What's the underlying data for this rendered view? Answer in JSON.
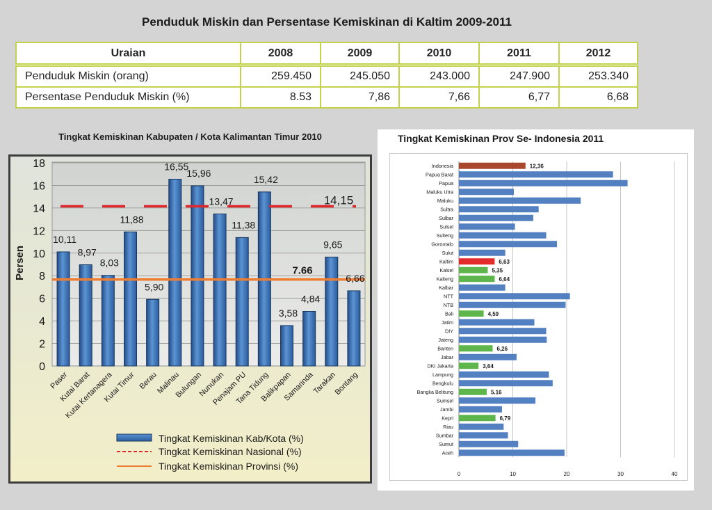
{
  "title": "Penduduk Miskin dan Persentase Kemiskinan di Kaltim 2009-2011",
  "table": {
    "headers": [
      "Uraian",
      "2008",
      "2009",
      "2010",
      "2011",
      "2012"
    ],
    "rows": [
      {
        "label": "Penduduk Miskin (orang)",
        "values": [
          "259.450",
          "245.050",
          "243.000",
          "247.900",
          "253.340"
        ]
      },
      {
        "label": "Persentase Penduduk Miskin (%)",
        "values": [
          "8.53",
          "7,86",
          "7,66",
          "6,77",
          "6,68"
        ]
      }
    ]
  },
  "colors": {
    "page_background": "#d4d4d4",
    "table_border": "#c3d24c"
  },
  "chart_data": [
    {
      "type": "bar",
      "title": "Tingkat Kemiskinan Kabupaten / Kota Kalimantan Timur 2010",
      "ylabel": "Persen",
      "ylim": [
        0,
        18
      ],
      "yticks": [
        0,
        2,
        4,
        6,
        8,
        10,
        12,
        14,
        16,
        18
      ],
      "grid": true,
      "series_name": "Tingkat Kemiskinan Kab/Kota (%)",
      "bar_color": "#4a7fc1",
      "categories": [
        "Paser",
        "Kutai Barat",
        "Kutai Kertanagera",
        "Kutai Timur",
        "Berau",
        "Malinau",
        "Bulungan",
        "Nunukan",
        "Penajam PU",
        "Tana Tidung",
        "Balikpapan",
        "Samarinda",
        "Tarakan",
        "Bontang"
      ],
      "values": [
        10.11,
        8.97,
        8.03,
        11.88,
        5.9,
        16.55,
        15.96,
        13.47,
        11.38,
        15.42,
        3.58,
        4.84,
        9.65,
        6.66
      ],
      "value_labels": [
        "10,11",
        "8,97",
        "8,03",
        "11,88",
        "5,90",
        "16,55",
        "15,96",
        "13,47",
        "11,38",
        "15,42",
        "3,58",
        "4,84",
        "9,65",
        "6,66"
      ],
      "reference_lines": [
        {
          "name": "Tingkat Kemiskinan Nasional (%)",
          "value": 14.15,
          "label": "14,15",
          "dashed": true,
          "color": "#e0282c"
        },
        {
          "name": "Tingkat Kemiskinan Provinsi (%)",
          "value": 7.66,
          "label": "7.66",
          "dashed": false,
          "color": "#ee7d31"
        }
      ]
    },
    {
      "type": "bar",
      "horizontal": true,
      "title": "Tingkat Kemiskinan Prov Se- Indonesia 2011",
      "xlim": [
        0,
        40
      ],
      "xticks": [
        0,
        10,
        20,
        30,
        40
      ],
      "grid": true,
      "bar_color": "#5280c0",
      "points": [
        {
          "name": "Indonesia",
          "value": 12.36,
          "label": "12,36",
          "color": "#a8472c"
        },
        {
          "name": "Papua Barat",
          "value": 28.6
        },
        {
          "name": "Papua",
          "value": 31.3
        },
        {
          "name": "Maluku Utra",
          "value": 10.2
        },
        {
          "name": "Maluku",
          "value": 22.6
        },
        {
          "name": "Sultra",
          "value": 14.8
        },
        {
          "name": "Sulbar",
          "value": 13.8
        },
        {
          "name": "Sulsel",
          "value": 10.4
        },
        {
          "name": "Sulteng",
          "value": 16.2
        },
        {
          "name": "Gorontalo",
          "value": 18.2
        },
        {
          "name": "Sulut",
          "value": 8.6
        },
        {
          "name": "Kaltim",
          "value": 6.63,
          "label": "6,63",
          "color": "#e22b2b"
        },
        {
          "name": "Kalsel",
          "value": 5.35,
          "label": "5,35",
          "color": "#5db54c"
        },
        {
          "name": "Kalteng",
          "value": 6.64,
          "label": "6,64",
          "color": "#5db54c"
        },
        {
          "name": "Kalbar",
          "value": 8.6
        },
        {
          "name": "NTT",
          "value": 20.6
        },
        {
          "name": "NTB",
          "value": 19.8
        },
        {
          "name": "Bali",
          "value": 4.59,
          "label": "4,59",
          "color": "#5db54c"
        },
        {
          "name": "Jatim",
          "value": 14.0
        },
        {
          "name": "DIY",
          "value": 16.2
        },
        {
          "name": "Jateng",
          "value": 16.3
        },
        {
          "name": "Banten",
          "value": 6.26,
          "label": "6,26",
          "color": "#5db54c"
        },
        {
          "name": "Jabar",
          "value": 10.7
        },
        {
          "name": "DKI Jakarta",
          "value": 3.64,
          "label": "3,64",
          "color": "#5db54c"
        },
        {
          "name": "Lampung",
          "value": 16.7
        },
        {
          "name": "Bengkulu",
          "value": 17.4
        },
        {
          "name": "Bangka Belitung",
          "value": 5.16,
          "label": "5.16",
          "color": "#5db54c"
        },
        {
          "name": "Sumsel",
          "value": 14.2
        },
        {
          "name": "Jambi",
          "value": 8.0
        },
        {
          "name": "Kepri",
          "value": 6.79,
          "label": "6,79",
          "color": "#5db54c"
        },
        {
          "name": "Riau",
          "value": 8.3
        },
        {
          "name": "Sumbar",
          "value": 9.1
        },
        {
          "name": "Sumut",
          "value": 11.0
        },
        {
          "name": "Aceh",
          "value": 19.6
        }
      ]
    }
  ]
}
